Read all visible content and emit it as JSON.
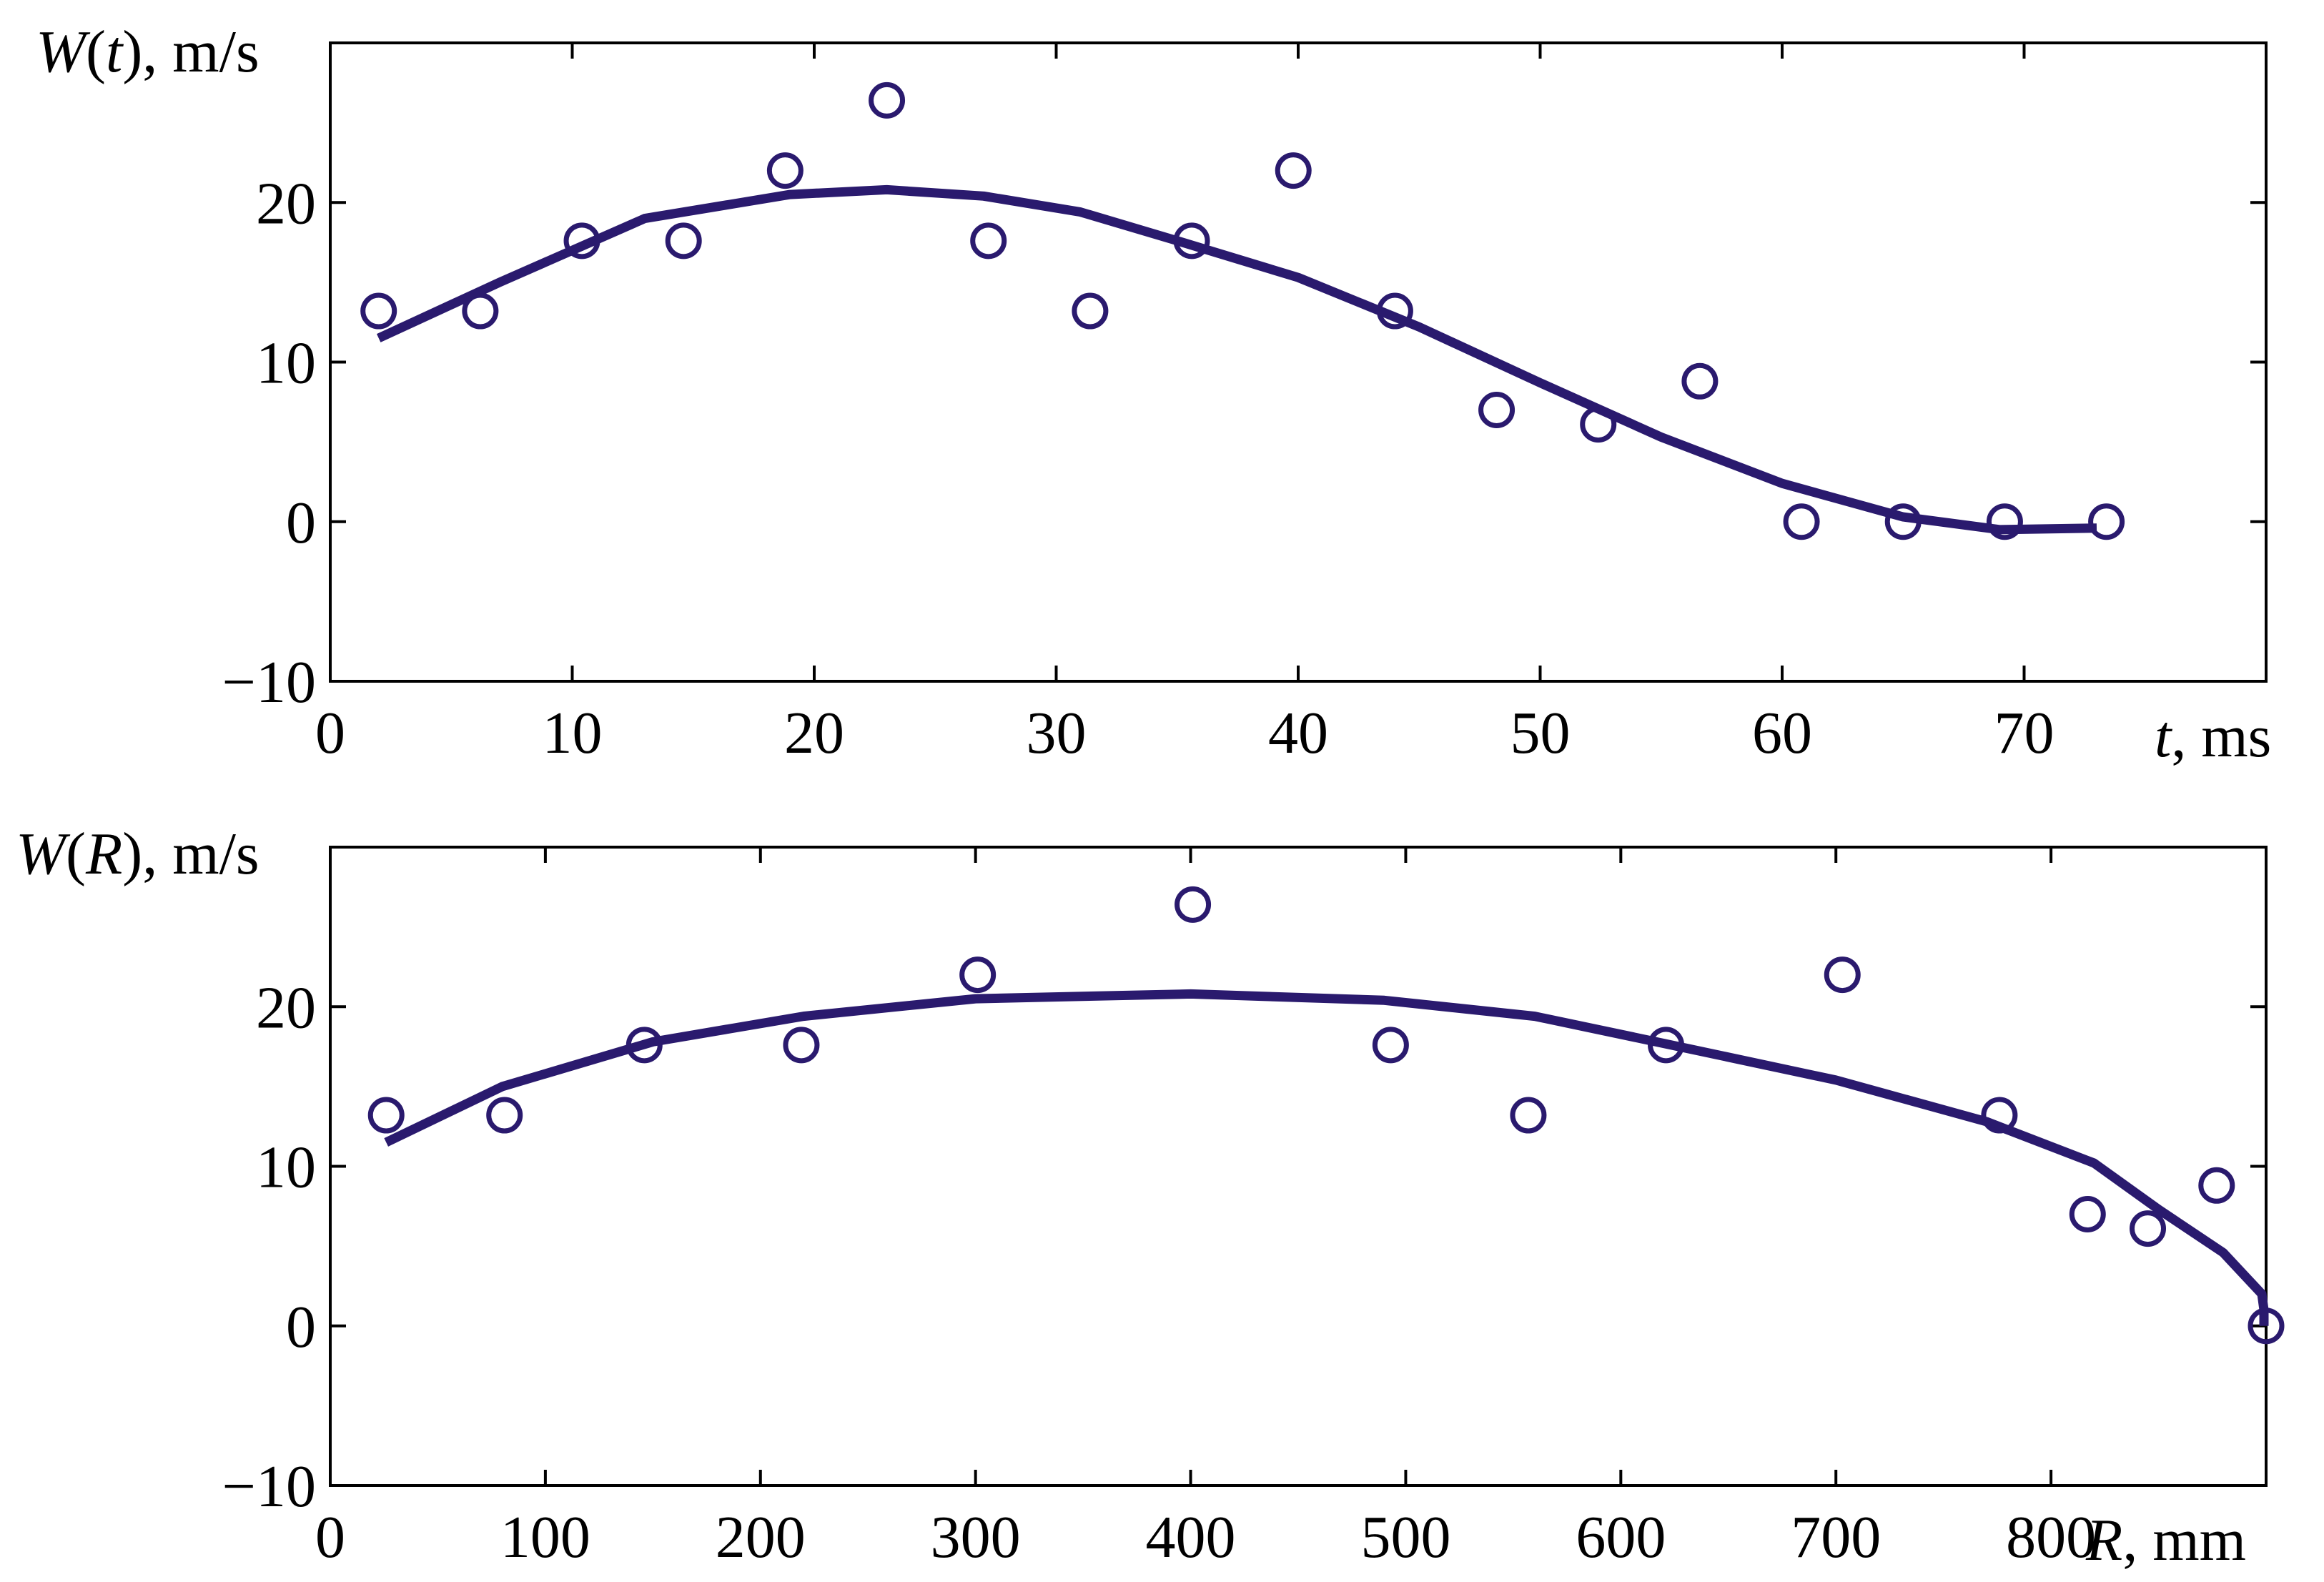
{
  "chart_data": [
    {
      "type": "scatter",
      "y_axis_label_parts": [
        "W",
        "(",
        "t",
        "), m/s"
      ],
      "x_axis_label_parts": [
        "t",
        ", ms"
      ],
      "xlim": [
        0,
        80
      ],
      "ylim": [
        -10,
        30
      ],
      "x_ticks": [
        0,
        10,
        20,
        30,
        40,
        50,
        60,
        70
      ],
      "y_ticks": [
        -10,
        0,
        10,
        20
      ],
      "x_tick_labels": [
        "0",
        "10",
        "20",
        "30",
        "40",
        "50",
        "60",
        "70"
      ],
      "y_tick_labels": [
        "−10",
        "0",
        "10",
        "20"
      ],
      "grid": false,
      "series": [
        {
          "kind": "points",
          "marker": "open-circle",
          "x": [
            2,
            6.2,
            10.4,
            14.6,
            18.8,
            23,
            27.2,
            31.4,
            35.6,
            39.8,
            44,
            48.2,
            52.4,
            56.6,
            60.8,
            65,
            69.2,
            73.4
          ],
          "y": [
            13.2,
            13.2,
            17.6,
            17.6,
            22,
            26.4,
            17.6,
            13.2,
            17.6,
            22,
            13.2,
            7,
            6.1,
            8.8,
            0,
            0,
            0,
            0
          ]
        },
        {
          "kind": "line",
          "x": [
            2,
            7,
            13,
            19,
            23,
            27,
            31,
            35,
            40,
            45,
            50,
            55,
            60,
            65,
            69,
            73
          ],
          "y": [
            11.5,
            15,
            19,
            20.5,
            20.8,
            20.4,
            19.4,
            17.6,
            15.3,
            12.2,
            8.7,
            5.3,
            2.4,
            0.3,
            -0.5,
            -0.4
          ]
        }
      ]
    },
    {
      "type": "scatter",
      "y_axis_label_parts": [
        "W",
        "(",
        "R",
        "), m/s"
      ],
      "x_axis_label_parts": [
        "R",
        ", mm"
      ],
      "xlim": [
        0,
        900
      ],
      "ylim": [
        -10,
        30
      ],
      "x_ticks": [
        0,
        100,
        200,
        300,
        400,
        500,
        600,
        700,
        800
      ],
      "y_ticks": [
        -10,
        0,
        10,
        20
      ],
      "x_tick_labels": [
        "0",
        "100",
        "200",
        "300",
        "400",
        "500",
        "600",
        "700",
        "800"
      ],
      "y_tick_labels": [
        "−10",
        "0",
        "10",
        "20"
      ],
      "grid": false,
      "series": [
        {
          "kind": "points",
          "marker": "open-circle",
          "x": [
            26,
            81,
            146,
            219,
            301,
            401,
            493,
            557,
            621,
            703,
            776,
            817,
            845,
            877,
            900
          ],
          "y": [
            13.2,
            13.2,
            17.6,
            17.6,
            22,
            26.4,
            17.6,
            13.2,
            17.6,
            22,
            13.2,
            7,
            6.1,
            8.8,
            0
          ]
        },
        {
          "kind": "line",
          "x": [
            26,
            80,
            150,
            220,
            300,
            400,
            490,
            560,
            620,
            700,
            770,
            820,
            850,
            880,
            898,
            899,
            899
          ],
          "y": [
            11.5,
            15,
            17.8,
            19.4,
            20.5,
            20.8,
            20.4,
            19.4,
            17.7,
            15.4,
            12.8,
            10.2,
            7.3,
            4.6,
            2,
            1,
            0
          ]
        }
      ]
    }
  ],
  "colors": {
    "series": "#2a1a6e",
    "axes": "#000000",
    "text": "#000000"
  }
}
